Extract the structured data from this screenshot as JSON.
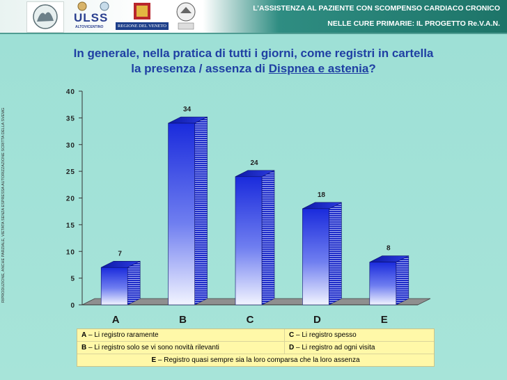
{
  "header": {
    "title_line1": "L’ASSISTENZA AL PAZIENTE CON SCOMPENSO CARDIACO CRONICO",
    "title_line2": "NELLE CURE PRIMARIE: IL PROGETTO Re.V.A.N.",
    "logo_ulss": "ULSS",
    "logo_ulss_sub": "ALTOVICENTINO",
    "logo_regione": "REGIONE DEL VENETO"
  },
  "question": {
    "line1": "In generale, nella pratica di tutti i giorni, come registri in cartella",
    "line2_pre": "la presenza / assenza di ",
    "line2_highlight": "Dispnea e astenia",
    "line2_post": "?"
  },
  "side_note": "RIPRODUZIONE, ANCHE PARZIALE, VIETATA SENZA ESPRESSA AUTORIZZAZIONE SCRITTA DELLA SVEMG",
  "chart_data": {
    "type": "bar",
    "categories": [
      "A",
      "B",
      "C",
      "D",
      "E"
    ],
    "values": [
      7,
      34,
      24,
      18,
      8
    ],
    "ylim": [
      0,
      40
    ],
    "yticks": [
      0,
      5,
      10,
      15,
      20,
      25,
      30,
      35,
      40
    ],
    "title": "",
    "xlabel": "",
    "ylabel": "",
    "bar_color": "#2233e0"
  },
  "legend": {
    "A_key": "A",
    "A_text": " – Li registro raramente",
    "B_key": "B",
    "B_text": " – Li registro solo se vi sono novità rilevanti",
    "C_key": "C",
    "C_text": " – Li registro spesso",
    "D_key": "D",
    "D_text": " – Li registro ad ogni visita",
    "E_key": "E",
    "E_text": " – Registro quasi sempre sia la loro comparsa che la loro assenza"
  }
}
